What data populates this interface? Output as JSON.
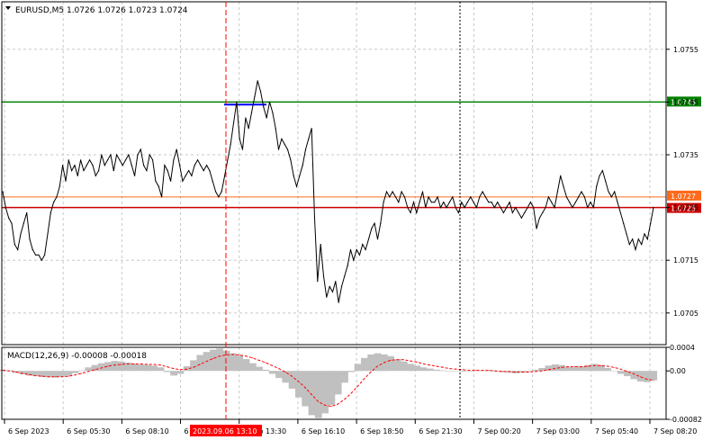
{
  "chart_data": {
    "type": "line",
    "symbol_info": "EURUSD,M5  1.0726 1.0726 1.0723 1.0724",
    "main": {
      "ylim": [
        1.0699,
        1.0764
      ],
      "y_ticks": [
        "1.0755",
        "1.0745",
        "1.0735",
        "1.0725",
        "1.0715",
        "1.0705"
      ],
      "series": [
        {
          "values": [
            1.0728,
            1.0725,
            1.0723,
            1.0722,
            1.0718,
            1.0717,
            1.072,
            1.0722,
            1.0724,
            1.0719,
            1.0717,
            1.0716,
            1.0716,
            1.0715,
            1.0716,
            1.072,
            1.0724,
            1.0726,
            1.0727,
            1.0729,
            1.0733,
            1.073,
            1.0734,
            1.0732,
            1.0733,
            1.0731,
            1.0734,
            1.0732,
            1.0733,
            1.0734,
            1.0733,
            1.0731,
            1.0732,
            1.0735,
            1.0733,
            1.0734,
            1.0735,
            1.0732,
            1.0735,
            1.0734,
            1.0733,
            1.0734,
            1.0735,
            1.0733,
            1.0731,
            1.0735,
            1.0736,
            1.0733,
            1.0732,
            1.0735,
            1.0734,
            1.073,
            1.0729,
            1.0727,
            1.0733,
            1.0732,
            1.073,
            1.0734,
            1.0736,
            1.0733,
            1.073,
            1.0731,
            1.0732,
            1.0731,
            1.0733,
            1.0734,
            1.0733,
            1.0732,
            1.0733,
            1.0732,
            1.073,
            1.0728,
            1.0727,
            1.0728,
            1.0731,
            1.0734,
            1.0737,
            1.0741,
            1.0745,
            1.0738,
            1.0736,
            1.0742,
            1.074,
            1.0743,
            1.0746,
            1.0749,
            1.0747,
            1.0744,
            1.0742,
            1.0745,
            1.0743,
            1.074,
            1.0736,
            1.0738,
            1.0737,
            1.0736,
            1.0734,
            1.0731,
            1.0729,
            1.0731,
            1.0733,
            1.0736,
            1.0738,
            1.074,
            1.0723,
            1.0711,
            1.0718,
            1.0712,
            1.0708,
            1.071,
            1.0709,
            1.0711,
            1.0707,
            1.071,
            1.0712,
            1.0714,
            1.0717,
            1.0715,
            1.0717,
            1.0716,
            1.0718,
            1.0717,
            1.0719,
            1.0721,
            1.0722,
            1.0719,
            1.0722,
            1.0726,
            1.0728,
            1.0727,
            1.0728,
            1.0727,
            1.0726,
            1.0728,
            1.0727,
            1.0725,
            1.0724,
            1.0726,
            1.0724,
            1.0726,
            1.0728,
            1.0725,
            1.0727,
            1.0726,
            1.0726,
            1.0727,
            1.0725,
            1.0726,
            1.0725,
            1.0726,
            1.0727,
            1.0725,
            1.0724,
            1.0726,
            1.0725,
            1.0726,
            1.0727,
            1.0726,
            1.0725,
            1.0727,
            1.0728,
            1.0727,
            1.0726,
            1.0726,
            1.0725,
            1.0726,
            1.0725,
            1.0724,
            1.0725,
            1.0726,
            1.0724,
            1.0725,
            1.0724,
            1.0723,
            1.0724,
            1.0725,
            1.0726,
            1.0725,
            1.0721,
            1.0723,
            1.0724,
            1.0725,
            1.0727,
            1.0726,
            1.0725,
            1.0728,
            1.0731,
            1.0729,
            1.0727,
            1.0726,
            1.0725,
            1.0726,
            1.0727,
            1.0728,
            1.0727,
            1.0725,
            1.0726,
            1.0725,
            1.0729,
            1.0731,
            1.0732,
            1.073,
            1.0728,
            1.0727,
            1.0728,
            1.0726,
            1.0724,
            1.0722,
            1.072,
            1.0718,
            1.0719,
            1.0717,
            1.0719,
            1.0718,
            1.072,
            1.0719,
            1.0722,
            1.0725
          ]
        }
      ],
      "levels": [
        {
          "value": 1.0745,
          "label": "1.0745",
          "color": "#008000"
        },
        {
          "value": 1.0727,
          "label": "1.0727",
          "color": "#ff6a1a"
        },
        {
          "value": 1.0725,
          "label": "1.0725",
          "color": "#cc0000"
        }
      ],
      "segment": {
        "value": 1.07445,
        "color": "#0000ff"
      }
    },
    "macd": {
      "label": "MACD(12,26,9) -0.00008 -0.00018",
      "ylim": [
        -0.00082,
        0.0004
      ],
      "y_ticks": [
        "0.0004",
        "0.00",
        "-0.00082"
      ],
      "histogram": [
        2e-05,
        1e-05,
        -3e-05,
        -6e-05,
        -8e-05,
        -9e-05,
        -0.0001,
        -0.00011,
        -0.00011,
        -0.0001,
        -8e-05,
        -4e-05,
        1e-05,
        6e-05,
        0.0001,
        0.00013,
        0.00015,
        0.00017,
        0.00016,
        0.00014,
        0.00012,
        0.00011,
        0.0001,
        9e-05,
        6e-05,
        -2e-05,
        -8e-05,
        -5e-05,
        8e-05,
        0.00018,
        0.00027,
        0.00032,
        0.00036,
        0.00038,
        0.00034,
        0.0003,
        0.00026,
        0.0002,
        0.00013,
        7e-05,
        2e-05,
        -5e-05,
        -0.00012,
        -0.0002,
        -0.0003,
        -0.00045,
        -0.0006,
        -0.00075,
        -0.0008,
        -0.00072,
        -0.00058,
        -0.0004,
        -0.0002,
        -2e-05,
        0.00012,
        0.00022,
        0.00028,
        0.0003,
        0.00028,
        0.00025,
        0.0002,
        0.00016,
        0.00012,
        9e-05,
        6e-05,
        4e-05,
        2e-05,
        1e-05,
        0.0,
        0.0,
        -1e-05,
        0.0,
        1e-05,
        1e-05,
        0.0,
        -1e-05,
        -2e-05,
        -3e-05,
        -4e-05,
        -3e-05,
        -1e-05,
        2e-05,
        5e-05,
        9e-05,
        0.00011,
        0.0001,
        7e-05,
        6e-05,
        8e-05,
        0.0001,
        0.00012,
        0.0001,
        5e-05,
        0.0,
        -5e-05,
        -9e-05,
        -0.00014,
        -0.00018,
        -0.00019,
        -0.00016
      ],
      "signal": [
        1e-05,
        0.0,
        -2e-05,
        -4e-05,
        -6e-05,
        -8e-05,
        -9e-05,
        -0.0001,
        -0.0001,
        -0.0001,
        -9e-05,
        -7e-05,
        -4e-05,
        -1e-05,
        2e-05,
        5e-05,
        8e-05,
        0.0001,
        0.00011,
        0.00012,
        0.00012,
        0.00012,
        0.00011,
        0.00011,
        0.0001,
        7e-05,
        4e-05,
        2e-05,
        3e-05,
        6e-05,
        0.00011,
        0.00016,
        0.00021,
        0.00025,
        0.00027,
        0.00028,
        0.00027,
        0.00025,
        0.00022,
        0.00018,
        0.00014,
        9e-05,
        4e-05,
        -2e-05,
        -9e-05,
        -0.00018,
        -0.00028,
        -0.0004,
        -0.00052,
        -0.00058,
        -0.0006,
        -0.00056,
        -0.00048,
        -0.00038,
        -0.00026,
        -0.00013,
        -2e-05,
        8e-05,
        0.00014,
        0.00018,
        0.00019,
        0.00019,
        0.00017,
        0.00015,
        0.00012,
        0.0001,
        8e-05,
        6e-05,
        4e-05,
        3e-05,
        2e-05,
        1e-05,
        1e-05,
        1e-05,
        1e-05,
        0.0,
        -1e-05,
        -1e-05,
        -2e-05,
        -2e-05,
        -2e-05,
        -1e-05,
        0.0,
        2e-05,
        4e-05,
        6e-05,
        7e-05,
        7e-05,
        7e-05,
        8e-05,
        9e-05,
        9e-05,
        8e-05,
        6e-05,
        3e-05,
        -1e-05,
        -5e-05,
        -0.0001,
        -0.00014,
        -0.00016
      ]
    },
    "x_ticks": [
      "6 Sep 2023",
      "6 Sep 05:30",
      "6 Sep 08:10",
      "6 Sep 10:50",
      "6 Sep 13:30",
      "6 Sep 16:10",
      "6 Sep 18:50",
      "6 Sep 21:30",
      "7 Sep 00:20",
      "7 Sep 03:00",
      "7 Sep 05:40",
      "7 Sep 08:20"
    ],
    "cursor_label": "2023.09.06 13:10",
    "colors": {
      "price_line": "#000000",
      "grid": "#c8c8c8",
      "histogram": "#c0c0c0",
      "signal": "#ff0000",
      "cursor": "#ff0000",
      "session": "#000000"
    }
  }
}
